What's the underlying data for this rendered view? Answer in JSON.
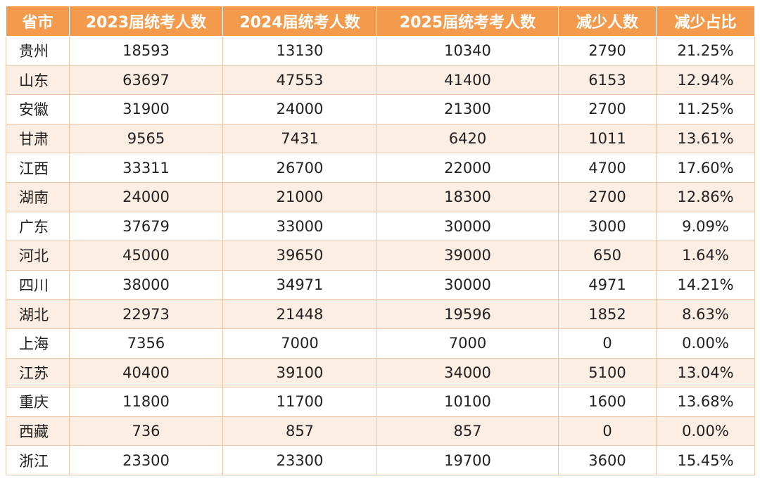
{
  "table": {
    "headers": [
      "省市",
      "2023届统考人数",
      "2024届统考人数",
      "2025届统考考人数",
      "减少人数",
      "减少占比"
    ],
    "rows": [
      [
        "贵州",
        "18593",
        "13130",
        "10340",
        "2790",
        "21.25%"
      ],
      [
        "山东",
        "63697",
        "47553",
        "41400",
        "6153",
        "12.94%"
      ],
      [
        "安徽",
        "31900",
        "24000",
        "21300",
        "2700",
        "11.25%"
      ],
      [
        "甘肃",
        "9565",
        "7431",
        "6420",
        "1011",
        "13.61%"
      ],
      [
        "江西",
        "33311",
        "26700",
        "22000",
        "4700",
        "17.60%"
      ],
      [
        "湖南",
        "24000",
        "21000",
        "18300",
        "2700",
        "12.86%"
      ],
      [
        "广东",
        "37679",
        "33000",
        "30000",
        "3000",
        "9.09%"
      ],
      [
        "河北",
        "45000",
        "39650",
        "39000",
        "650",
        "1.64%"
      ],
      [
        "四川",
        "38000",
        "34971",
        "30000",
        "4971",
        "14.21%"
      ],
      [
        "湖北",
        "22973",
        "21448",
        "19596",
        "1852",
        "8.63%"
      ],
      [
        "上海",
        "7356",
        "7000",
        "7000",
        "0",
        "0.00%"
      ],
      [
        "江苏",
        "40400",
        "39100",
        "34000",
        "5100",
        "13.04%"
      ],
      [
        "重庆",
        "11800",
        "11700",
        "10100",
        "1600",
        "13.68%"
      ],
      [
        "西藏",
        "736",
        "857",
        "857",
        "0",
        "0.00%"
      ],
      [
        "浙江",
        "23300",
        "23300",
        "19700",
        "3600",
        "15.45%"
      ]
    ]
  },
  "colors": {
    "header_bg": "#f39a4c",
    "header_text": "#ffffff",
    "row_alt_bg": "#fdeee3",
    "border": "#f0c6a6"
  }
}
